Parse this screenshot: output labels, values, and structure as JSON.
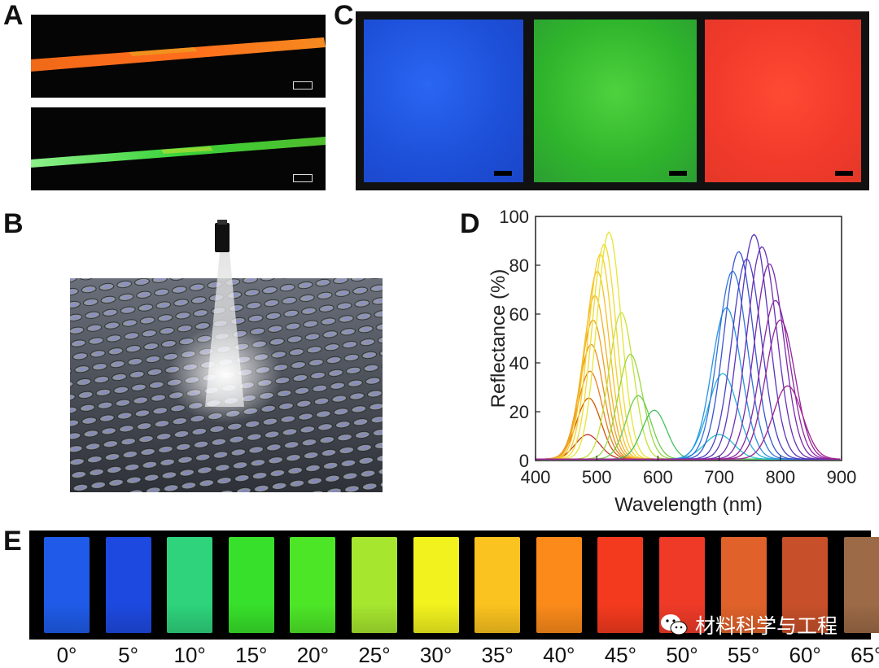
{
  "panels": {
    "a": "A",
    "b": "B",
    "c": "C",
    "d": "D",
    "e": "E"
  },
  "figure_d": {
    "chart_data": {
      "type": "line",
      "xlabel": "Wavelength (nm)",
      "ylabel": "Reflectance (%)",
      "xlim": [
        400,
        900
      ],
      "ylim": [
        0,
        100
      ],
      "x_ticks": [
        "400",
        "500",
        "600",
        "700",
        "800",
        "900"
      ],
      "y_ticks": [
        "0",
        "20",
        "40",
        "60",
        "80",
        "100"
      ],
      "series": [
        {
          "peak_nm": 485,
          "peak_pct": 10,
          "color": "#c0392b"
        },
        {
          "peak_nm": 487,
          "peak_pct": 25,
          "color": "#d35400"
        },
        {
          "peak_nm": 489,
          "peak_pct": 36,
          "color": "#e67e22"
        },
        {
          "peak_nm": 491,
          "peak_pct": 47,
          "color": "#e9901f"
        },
        {
          "peak_nm": 494,
          "peak_pct": 57,
          "color": "#f0a11f"
        },
        {
          "peak_nm": 497,
          "peak_pct": 67,
          "color": "#f3b122"
        },
        {
          "peak_nm": 501,
          "peak_pct": 77,
          "color": "#f5c026"
        },
        {
          "peak_nm": 506,
          "peak_pct": 84,
          "color": "#f4cf2a"
        },
        {
          "peak_nm": 512,
          "peak_pct": 88,
          "color": "#f0dc2e"
        },
        {
          "peak_nm": 520,
          "peak_pct": 93,
          "color": "#e6e632"
        },
        {
          "peak_nm": 540,
          "peak_pct": 60,
          "color": "#c5e23a"
        },
        {
          "peak_nm": 555,
          "peak_pct": 43,
          "color": "#9ad843"
        },
        {
          "peak_nm": 568,
          "peak_pct": 26,
          "color": "#6fcd4d"
        },
        {
          "peak_nm": 594,
          "peak_pct": 20,
          "color": "#45c060"
        },
        {
          "peak_nm": 700,
          "peak_pct": 10,
          "color": "#25c4c9"
        },
        {
          "peak_nm": 706,
          "peak_pct": 35,
          "color": "#24b0e0"
        },
        {
          "peak_nm": 712,
          "peak_pct": 62,
          "color": "#2794e2"
        },
        {
          "peak_nm": 722,
          "peak_pct": 77,
          "color": "#2f74db"
        },
        {
          "peak_nm": 732,
          "peak_pct": 85,
          "color": "#3856cf"
        },
        {
          "peak_nm": 745,
          "peak_pct": 82,
          "color": "#4a3fc4"
        },
        {
          "peak_nm": 757,
          "peak_pct": 92,
          "color": "#5a35bd"
        },
        {
          "peak_nm": 770,
          "peak_pct": 87,
          "color": "#6a2fb5"
        },
        {
          "peak_nm": 782,
          "peak_pct": 80,
          "color": "#7a2aad"
        },
        {
          "peak_nm": 792,
          "peak_pct": 65,
          "color": "#8a27a4"
        },
        {
          "peak_nm": 800,
          "peak_pct": 57,
          "color": "#95249b"
        },
        {
          "peak_nm": 812,
          "peak_pct": 30,
          "color": "#a02292"
        }
      ]
    }
  },
  "figure_e": {
    "angles": [
      "0°",
      "5°",
      "10°",
      "15°",
      "20°",
      "25°",
      "30°",
      "35°",
      "40°",
      "45°",
      "50°",
      "55°",
      "60°",
      "65°"
    ],
    "strip_colors": [
      "#1f5be8",
      "#1d49e0",
      "#2ed37c",
      "#37e02a",
      "#4de627",
      "#a6e62f",
      "#f2f21f",
      "#fbc31f",
      "#fb8a1a",
      "#f43a1e",
      "#ef3a28",
      "#e0622a",
      "#c7502a",
      "#9c6a46"
    ]
  },
  "watermark": {
    "text": "材料科学与工程"
  }
}
